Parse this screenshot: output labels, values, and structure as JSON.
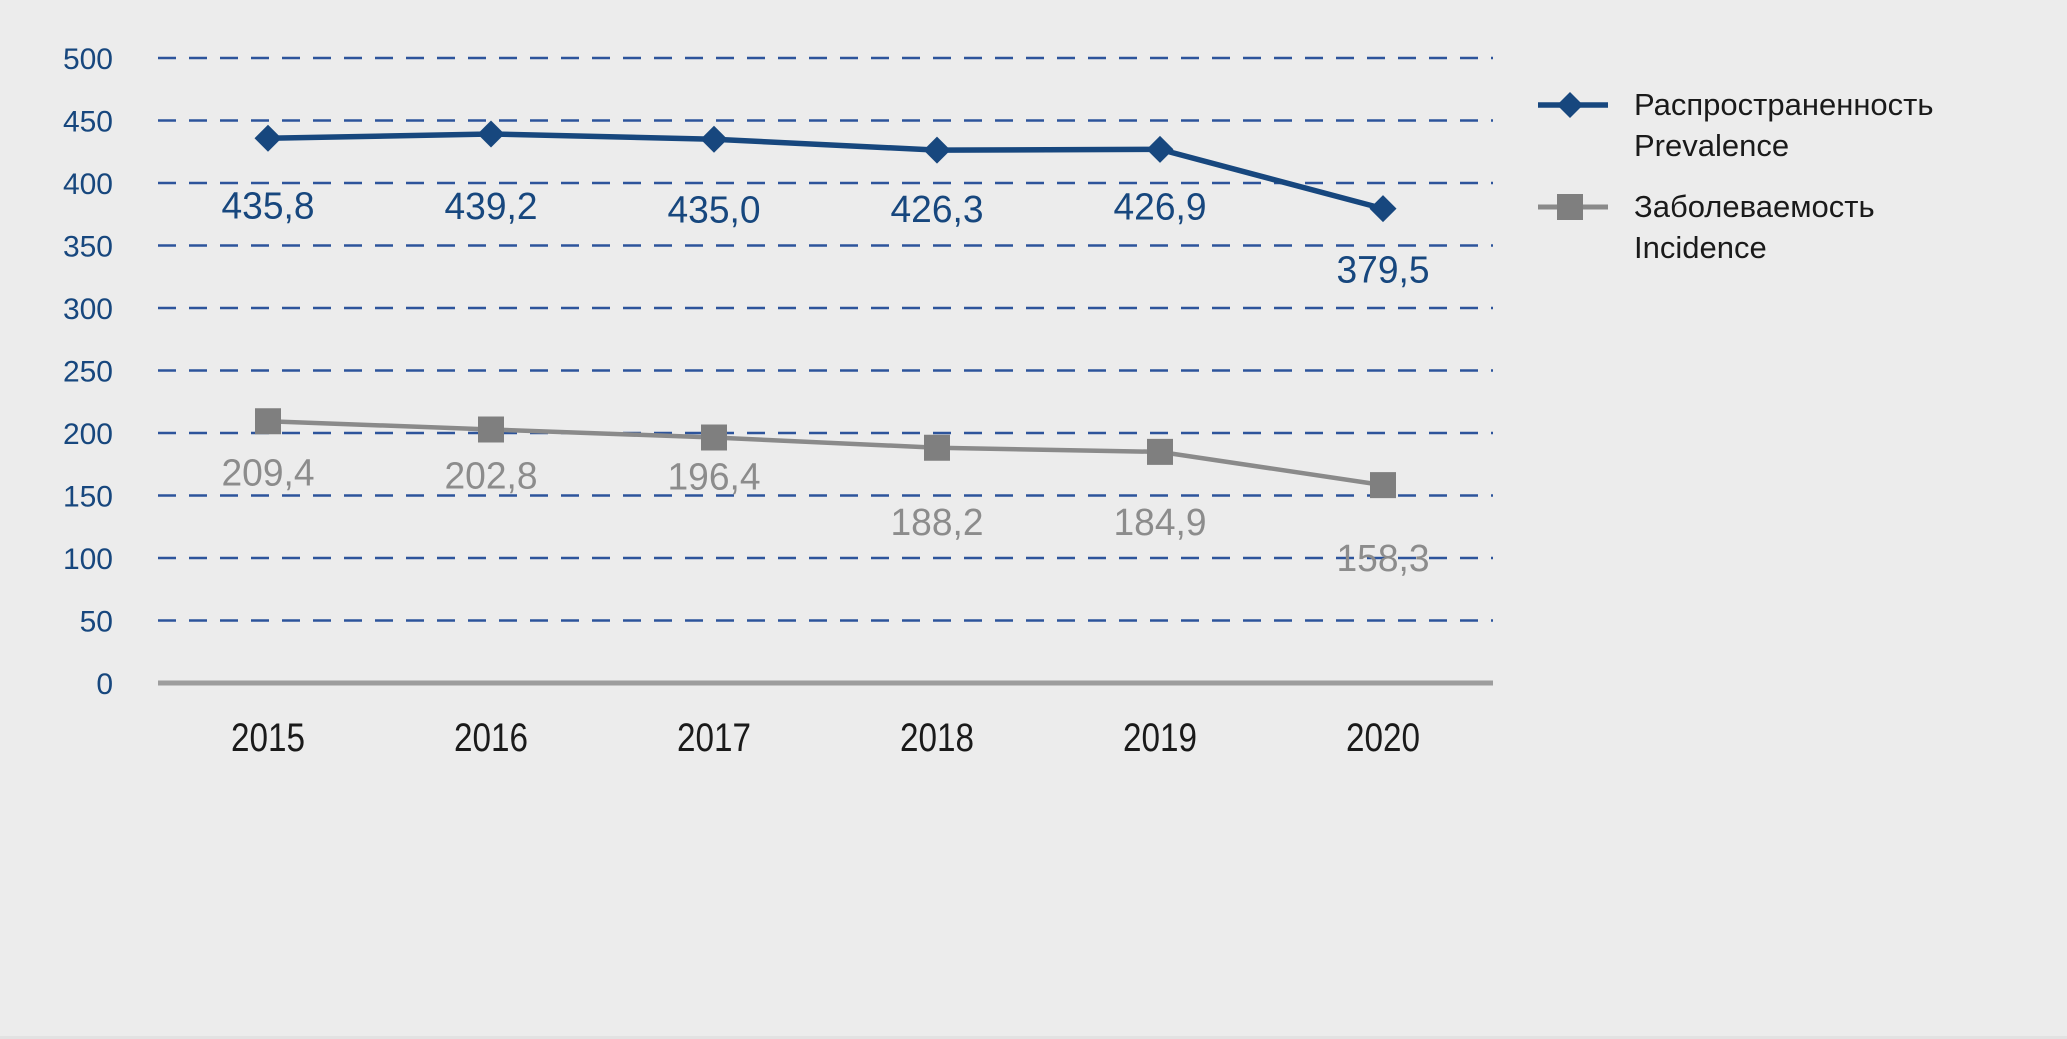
{
  "chart_data": {
    "type": "line",
    "title": "",
    "xlabel": "",
    "ylabel": "",
    "categories": [
      "2015",
      "2016",
      "2017",
      "2018",
      "2019",
      "2020"
    ],
    "series": [
      {
        "name_ru": "Распространенность",
        "name_en": "Prevalence",
        "values": [
          435.8,
          439.2,
          435.0,
          426.3,
          426.9,
          379.5
        ],
        "labels": [
          "435,8",
          "439,2",
          "435,0",
          "426,3",
          "426,9",
          "379,5"
        ],
        "marker": "diamond",
        "color": "#17477E",
        "line_color": "#17477E",
        "label_color": "#17477E"
      },
      {
        "name_ru": "Заболеваемость",
        "name_en": "Incidence",
        "values": [
          209.4,
          202.8,
          196.4,
          188.2,
          184.9,
          158.3
        ],
        "labels": [
          "209,4",
          "202,8",
          "196,4",
          "188,2",
          "184,9",
          "158,3"
        ],
        "marker": "square",
        "color": "#7F7F7F",
        "line_color": "#8A8A8A",
        "label_color": "#8C8C8C"
      }
    ],
    "ylim": [
      0,
      500
    ],
    "yticks": [
      0,
      50,
      100,
      150,
      200,
      250,
      300,
      350,
      400,
      450,
      500
    ],
    "grid": "horizontal-dashed",
    "legend_position": "right",
    "decimal_separator": ",",
    "colors": {
      "background": "#ECECEC",
      "gridline": "#2D549B",
      "ytick_label": "#17477E",
      "xtick_label": "#1A1A1A",
      "zero_axis": "#9D9D9D",
      "legend_text": "#1A1A1A"
    }
  }
}
